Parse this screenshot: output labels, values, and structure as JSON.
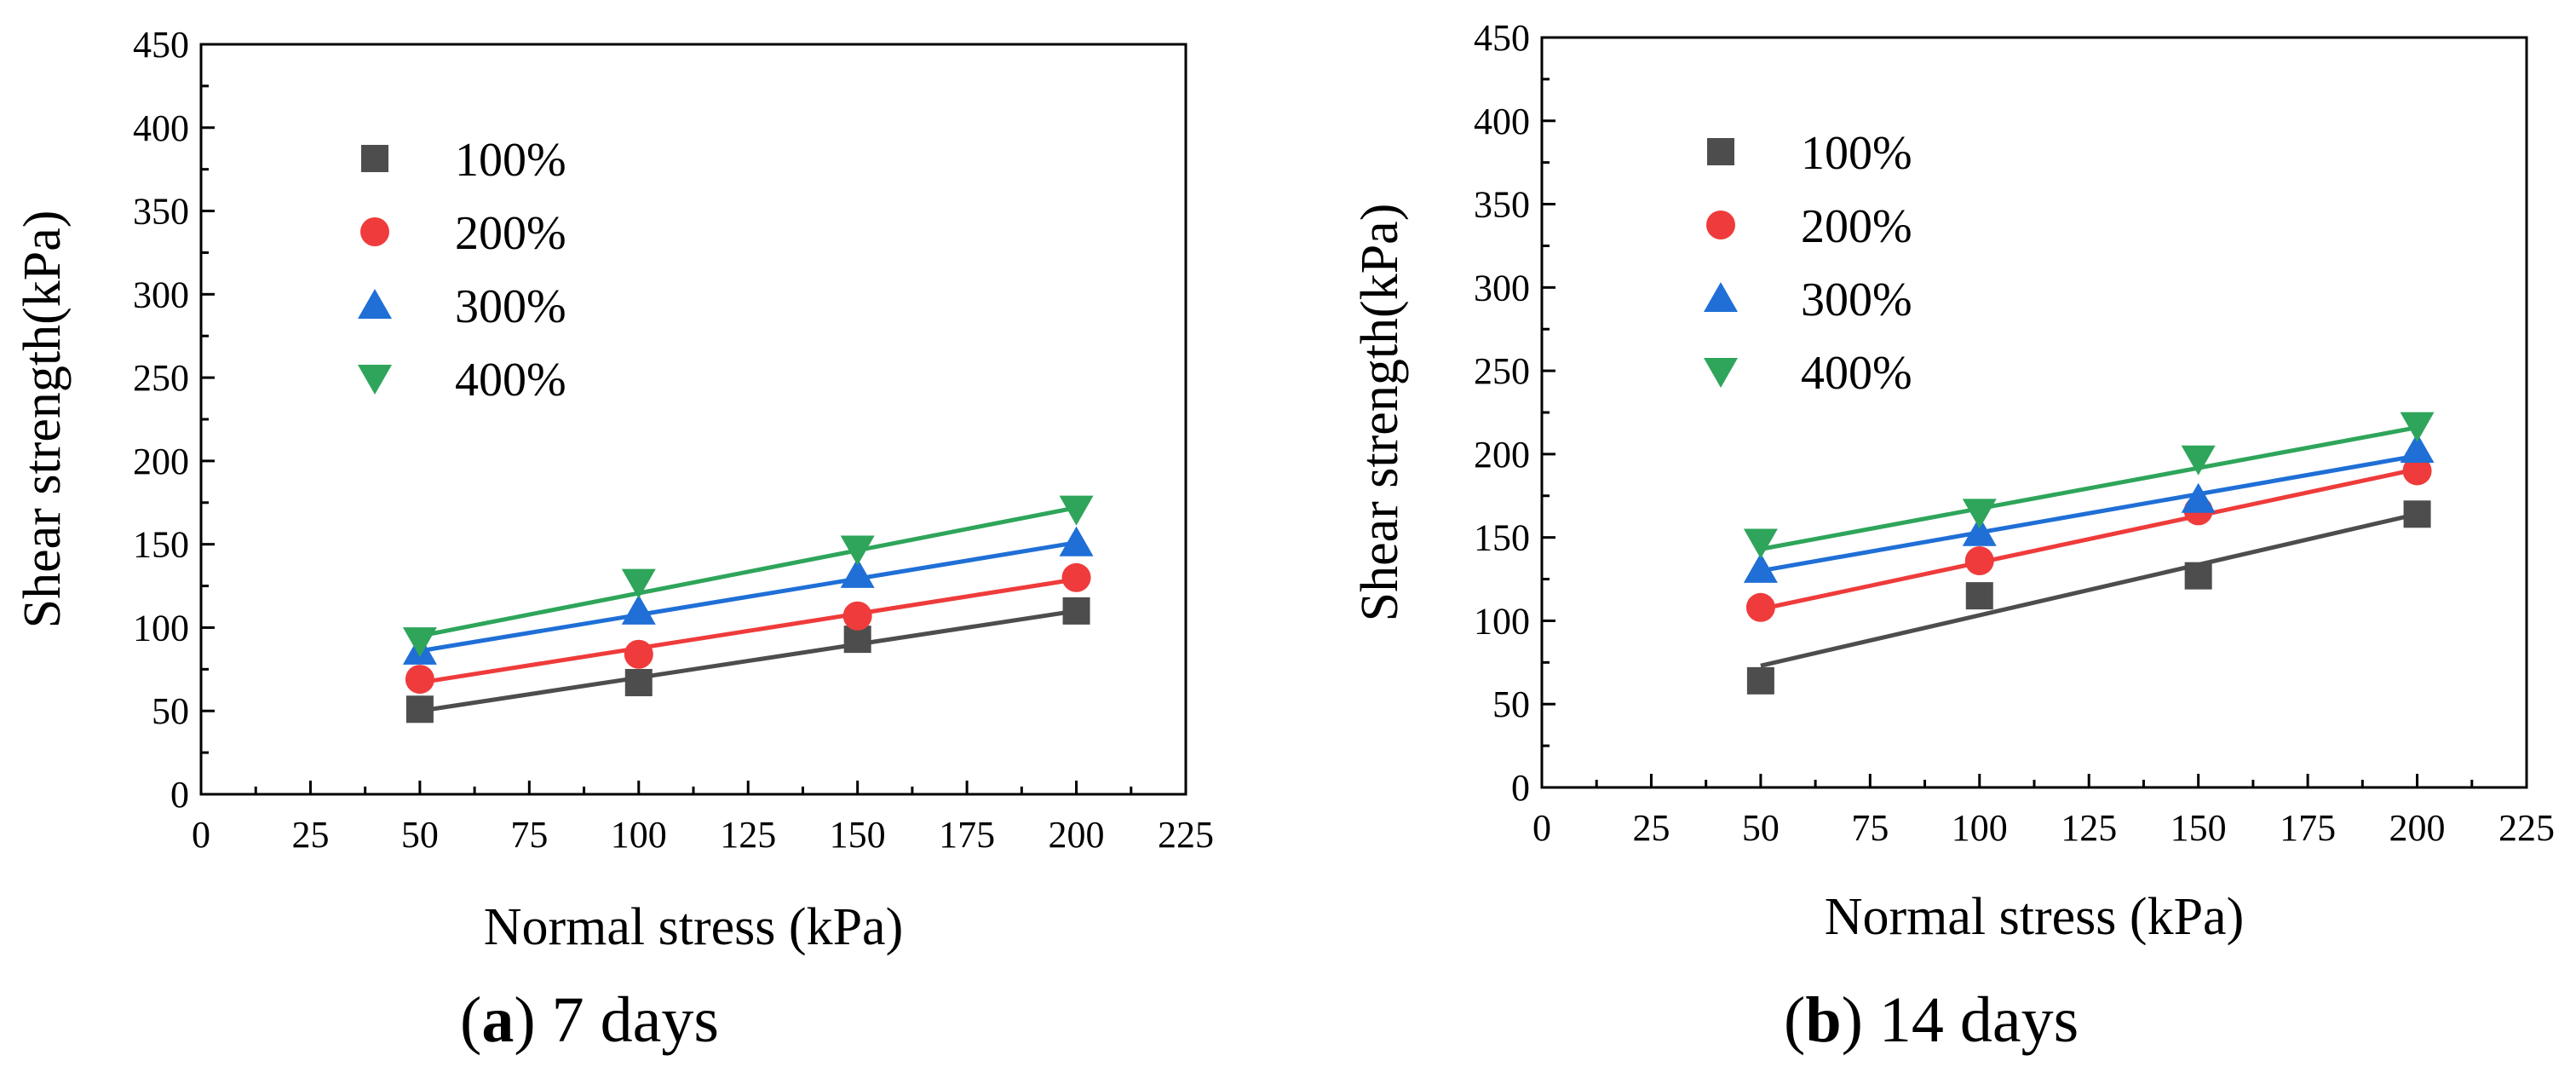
{
  "chart_data": [
    {
      "type": "scatter",
      "caption": {
        "letter": "a",
        "text": " 7 days"
      },
      "xlabel": "Normal stress (kPa)",
      "ylabel": "Shear strength(kPa)",
      "xlim": [
        0,
        225
      ],
      "ylim": [
        0,
        450
      ],
      "x_ticks": [
        0,
        25,
        50,
        75,
        100,
        125,
        150,
        175,
        200,
        225
      ],
      "y_ticks": [
        0,
        50,
        100,
        150,
        200,
        250,
        300,
        350,
        400,
        450
      ],
      "x_tick_labels": [
        "0",
        "25",
        "50",
        "75",
        "100",
        "125",
        "150",
        "175",
        "200",
        "225"
      ],
      "y_tick_labels": [
        "0",
        "50",
        "100",
        "150",
        "200",
        "250",
        "300",
        "350",
        "400",
        "450"
      ],
      "legend_position": "top-left",
      "series": [
        {
          "name": "100%",
          "marker": "square",
          "color": "#4d4d4d",
          "x": [
            50,
            100,
            150,
            200
          ],
          "values": [
            51,
            67,
            93,
            110
          ],
          "fit": [
            [
              50,
              50
            ],
            [
              200,
              110
            ]
          ]
        },
        {
          "name": "200%",
          "marker": "circle",
          "color": "#ef3b3b",
          "x": [
            50,
            100,
            150,
            200
          ],
          "values": [
            69,
            84,
            107,
            130
          ],
          "fit": [
            [
              50,
              67
            ],
            [
              200,
              129
            ]
          ]
        },
        {
          "name": "300%",
          "marker": "triangle-up",
          "color": "#1f6fd6",
          "x": [
            50,
            100,
            150,
            200
          ],
          "values": [
            86,
            110,
            132,
            151
          ],
          "fit": [
            [
              50,
              86
            ],
            [
              200,
              151
            ]
          ]
        },
        {
          "name": "400%",
          "marker": "triangle-down",
          "color": "#2ea55a",
          "x": [
            50,
            100,
            150,
            200
          ],
          "values": [
            92,
            127,
            147,
            171
          ],
          "fit": [
            [
              50,
              95
            ],
            [
              200,
              172
            ]
          ]
        }
      ]
    },
    {
      "type": "scatter",
      "caption": {
        "letter": "b",
        "text": " 14 days"
      },
      "xlabel": "Normal stress (kPa)",
      "ylabel": "Shear strength(kPa)",
      "xlim": [
        0,
        225
      ],
      "ylim": [
        0,
        450
      ],
      "x_ticks": [
        0,
        25,
        50,
        75,
        100,
        125,
        150,
        175,
        200,
        225
      ],
      "y_ticks": [
        0,
        50,
        100,
        150,
        200,
        250,
        300,
        350,
        400,
        450
      ],
      "x_tick_labels": [
        "0",
        "25",
        "50",
        "75",
        "100",
        "125",
        "150",
        "175",
        "200",
        "225"
      ],
      "y_tick_labels": [
        "0",
        "50",
        "100",
        "150",
        "200",
        "250",
        "300",
        "350",
        "400",
        "450"
      ],
      "legend_position": "top-left",
      "series": [
        {
          "name": "100%",
          "marker": "square",
          "color": "#4d4d4d",
          "x": [
            50,
            100,
            150,
            200
          ],
          "values": [
            64,
            115,
            127,
            164
          ],
          "fit": [
            [
              50,
              73
            ],
            [
              200,
              164
            ]
          ]
        },
        {
          "name": "200%",
          "marker": "circle",
          "color": "#ef3b3b",
          "x": [
            50,
            100,
            150,
            200
          ],
          "values": [
            108,
            136,
            166,
            190
          ],
          "fit": [
            [
              50,
              107
            ],
            [
              200,
              191
            ]
          ]
        },
        {
          "name": "300%",
          "marker": "triangle-up",
          "color": "#1f6fd6",
          "x": [
            50,
            100,
            150,
            200
          ],
          "values": [
            131,
            153,
            173,
            203
          ],
          "fit": [
            [
              50,
              130
            ],
            [
              200,
              199
            ]
          ]
        },
        {
          "name": "400%",
          "marker": "triangle-down",
          "color": "#2ea55a",
          "x": [
            50,
            100,
            150,
            200
          ],
          "values": [
            147,
            165,
            197,
            217
          ],
          "fit": [
            [
              50,
              143
            ],
            [
              200,
              216
            ]
          ]
        }
      ]
    }
  ]
}
